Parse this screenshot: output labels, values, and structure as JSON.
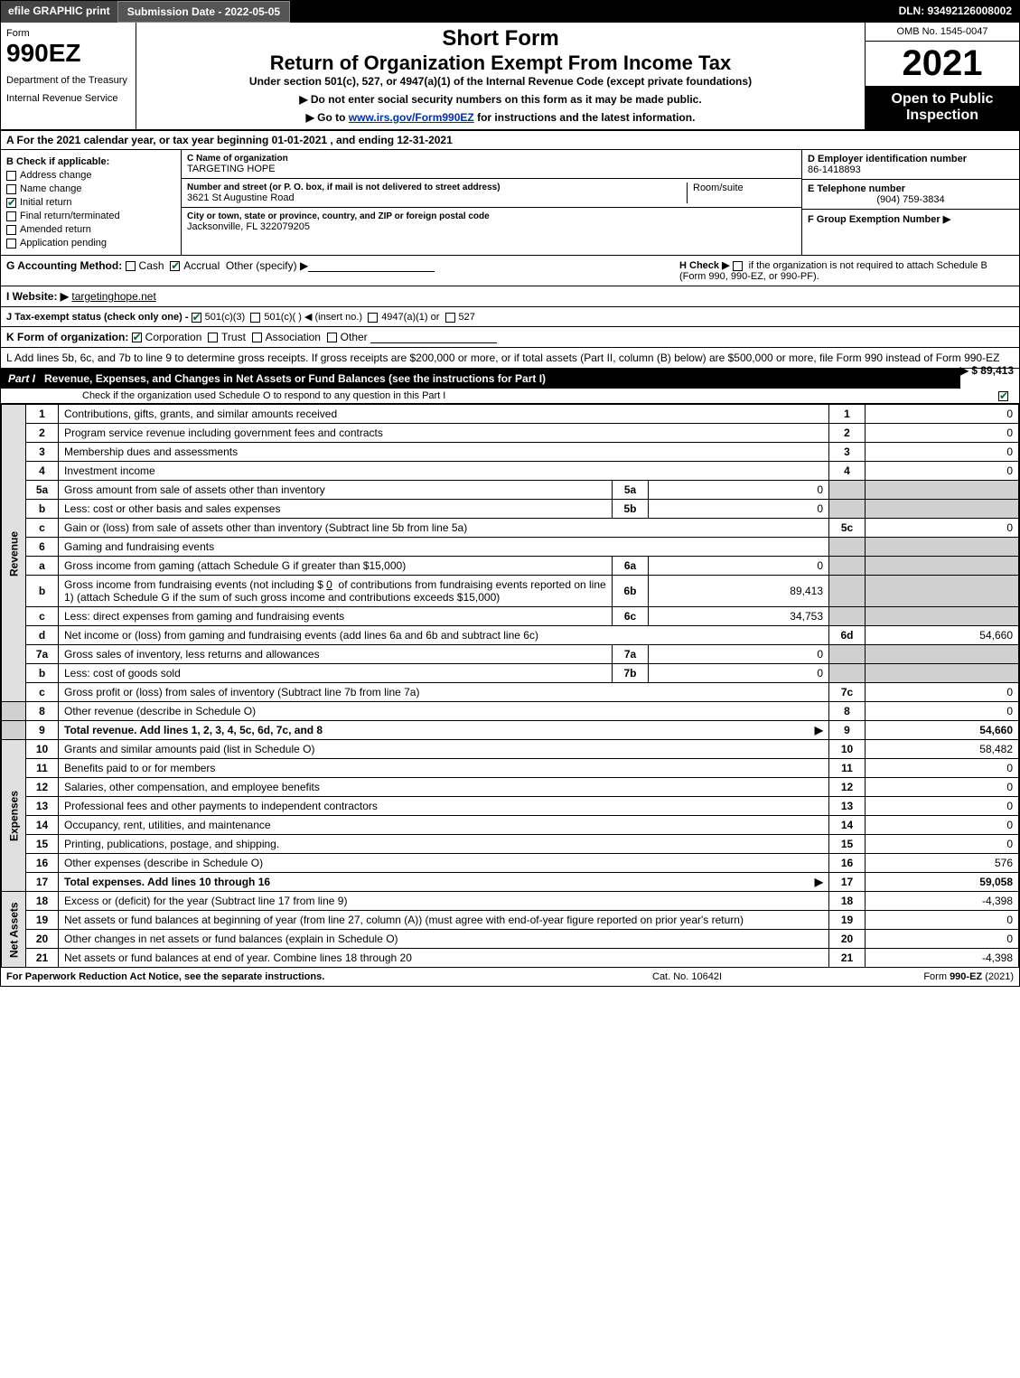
{
  "topbar": {
    "efile": "efile GRAPHIC print",
    "subdate_label": "Submission Date - 2022-05-05",
    "dln": "DLN: 93492126008002"
  },
  "header": {
    "form_word": "Form",
    "form_number": "990EZ",
    "dept1": "Department of the Treasury",
    "dept2": "Internal Revenue Service",
    "title1": "Short Form",
    "title2": "Return of Organization Exempt From Income Tax",
    "subtitle": "Under section 501(c), 527, or 4947(a)(1) of the Internal Revenue Code (except private foundations)",
    "instr1": "▶ Do not enter social security numbers on this form as it may be made public.",
    "instr2_pre": "▶ Go to ",
    "instr2_link": "www.irs.gov/Form990EZ",
    "instr2_post": " for instructions and the latest information.",
    "omb": "OMB No. 1545-0047",
    "year": "2021",
    "open": "Open to Public Inspection"
  },
  "A": {
    "text": "A  For the 2021 calendar year, or tax year beginning 01-01-2021 , and ending 12-31-2021"
  },
  "B": {
    "legend": "B  Check if applicable:",
    "address_change": "Address change",
    "name_change": "Name change",
    "initial_return": "Initial return",
    "final_return": "Final return/terminated",
    "amended_return": "Amended return",
    "application_pending": "Application pending",
    "initial_checked": true
  },
  "C": {
    "name_label": "C Name of organization",
    "name": "TARGETING HOPE",
    "addr_label": "Number and street (or P. O. box, if mail is not delivered to street address)",
    "addr": "3621 St Augustine Road",
    "room_label": "Room/suite",
    "room": "",
    "city_label": "City or town, state or province, country, and ZIP or foreign postal code",
    "city": "Jacksonville, FL  322079205"
  },
  "D": {
    "label": "D Employer identification number",
    "value": "86-1418893"
  },
  "E": {
    "label": "E Telephone number",
    "value": "(904) 759-3834"
  },
  "F": {
    "label": "F Group Exemption Number  ▶",
    "value": ""
  },
  "G": {
    "label": "G Accounting Method:",
    "cash": "Cash",
    "accrual": "Accrual",
    "other": "Other (specify) ▶",
    "accrual_checked": true
  },
  "H": {
    "text_pre": "H  Check ▶ ",
    "text_post": " if the organization is not required to attach Schedule B (Form 990, 990-EZ, or 990-PF)."
  },
  "I": {
    "label": "I Website: ▶",
    "value": "targetinghope.net"
  },
  "J": {
    "label": "J Tax-exempt status (check only one) -",
    "opt1": "501(c)(3)",
    "opt2": "501(c)(  ) ◀ (insert no.)",
    "opt3": "4947(a)(1) or",
    "opt4": "527",
    "opt1_checked": true
  },
  "K": {
    "label": "K Form of organization:",
    "corp": "Corporation",
    "trust": "Trust",
    "assoc": "Association",
    "other": "Other",
    "corp_checked": true
  },
  "L": {
    "text": "L Add lines 5b, 6c, and 7b to line 9 to determine gross receipts. If gross receipts are $200,000 or more, or if total assets (Part II, column (B) below) are $500,000 or more, file Form 990 instead of Form 990-EZ",
    "value_label": "▶ $ 89,413"
  },
  "part1": {
    "name": "Part I",
    "title": "Revenue, Expenses, and Changes in Net Assets or Fund Balances (see the instructions for Part I)",
    "sub": "Check if the organization used Schedule O to respond to any question in this Part I"
  },
  "sidelabels": {
    "revenue": "Revenue",
    "expenses": "Expenses",
    "netassets": "Net Assets"
  },
  "lines": {
    "l1": {
      "num": "1",
      "desc": "Contributions, gifts, grants, and similar amounts received",
      "outnum": "1",
      "outval": "0"
    },
    "l2": {
      "num": "2",
      "desc": "Program service revenue including government fees and contracts",
      "outnum": "2",
      "outval": "0"
    },
    "l3": {
      "num": "3",
      "desc": "Membership dues and assessments",
      "outnum": "3",
      "outval": "0"
    },
    "l4": {
      "num": "4",
      "desc": "Investment income",
      "outnum": "4",
      "outval": "0"
    },
    "l5a": {
      "num": "5a",
      "desc": "Gross amount from sale of assets other than inventory",
      "innum": "5a",
      "inval": "0"
    },
    "l5b": {
      "num": "b",
      "desc": "Less: cost or other basis and sales expenses",
      "innum": "5b",
      "inval": "0"
    },
    "l5c": {
      "num": "c",
      "desc": "Gain or (loss) from sale of assets other than inventory (Subtract line 5b from line 5a)",
      "outnum": "5c",
      "outval": "0"
    },
    "l6": {
      "num": "6",
      "desc": "Gaming and fundraising events"
    },
    "l6a": {
      "num": "a",
      "desc": "Gross income from gaming (attach Schedule G if greater than $15,000)",
      "innum": "6a",
      "inval": "0"
    },
    "l6b": {
      "num": "b",
      "desc1": "Gross income from fundraising events (not including $",
      "amt": "0",
      "desc2": "of contributions from fundraising events reported on line 1) (attach Schedule G if the sum of such gross income and contributions exceeds $15,000)",
      "innum": "6b",
      "inval": "89,413"
    },
    "l6c": {
      "num": "c",
      "desc": "Less: direct expenses from gaming and fundraising events",
      "innum": "6c",
      "inval": "34,753"
    },
    "l6d": {
      "num": "d",
      "desc": "Net income or (loss) from gaming and fundraising events (add lines 6a and 6b and subtract line 6c)",
      "outnum": "6d",
      "outval": "54,660"
    },
    "l7a": {
      "num": "7a",
      "desc": "Gross sales of inventory, less returns and allowances",
      "innum": "7a",
      "inval": "0"
    },
    "l7b": {
      "num": "b",
      "desc": "Less: cost of goods sold",
      "innum": "7b",
      "inval": "0"
    },
    "l7c": {
      "num": "c",
      "desc": "Gross profit or (loss) from sales of inventory (Subtract line 7b from line 7a)",
      "outnum": "7c",
      "outval": "0"
    },
    "l8": {
      "num": "8",
      "desc": "Other revenue (describe in Schedule O)",
      "outnum": "8",
      "outval": "0"
    },
    "l9": {
      "num": "9",
      "desc": "Total revenue. Add lines 1, 2, 3, 4, 5c, 6d, 7c, and 8",
      "outnum": "9",
      "outval": "54,660"
    },
    "l10": {
      "num": "10",
      "desc": "Grants and similar amounts paid (list in Schedule O)",
      "outnum": "10",
      "outval": "58,482"
    },
    "l11": {
      "num": "11",
      "desc": "Benefits paid to or for members",
      "outnum": "11",
      "outval": "0"
    },
    "l12": {
      "num": "12",
      "desc": "Salaries, other compensation, and employee benefits",
      "outnum": "12",
      "outval": "0"
    },
    "l13": {
      "num": "13",
      "desc": "Professional fees and other payments to independent contractors",
      "outnum": "13",
      "outval": "0"
    },
    "l14": {
      "num": "14",
      "desc": "Occupancy, rent, utilities, and maintenance",
      "outnum": "14",
      "outval": "0"
    },
    "l15": {
      "num": "15",
      "desc": "Printing, publications, postage, and shipping.",
      "outnum": "15",
      "outval": "0"
    },
    "l16": {
      "num": "16",
      "desc": "Other expenses (describe in Schedule O)",
      "outnum": "16",
      "outval": "576"
    },
    "l17": {
      "num": "17",
      "desc": "Total expenses. Add lines 10 through 16",
      "outnum": "17",
      "outval": "59,058"
    },
    "l18": {
      "num": "18",
      "desc": "Excess or (deficit) for the year (Subtract line 17 from line 9)",
      "outnum": "18",
      "outval": "-4,398"
    },
    "l19": {
      "num": "19",
      "desc": "Net assets or fund balances at beginning of year (from line 27, column (A)) (must agree with end-of-year figure reported on prior year's return)",
      "outnum": "19",
      "outval": "0"
    },
    "l20": {
      "num": "20",
      "desc": "Other changes in net assets or fund balances (explain in Schedule O)",
      "outnum": "20",
      "outval": "0"
    },
    "l21": {
      "num": "21",
      "desc": "Net assets or fund balances at end of year. Combine lines 18 through 20",
      "outnum": "21",
      "outval": "-4,398"
    }
  },
  "footer": {
    "left": "For Paperwork Reduction Act Notice, see the separate instructions.",
    "mid": "Cat. No. 10642I",
    "right_pre": "Form ",
    "right_form": "990-EZ",
    "right_post": " (2021)"
  },
  "colors": {
    "black": "#000000",
    "white": "#ffffff",
    "gray_shade": "#d0d0d0",
    "side_gray": "#e0e0e0",
    "check_green": "#006633",
    "link_blue": "#003399"
  }
}
